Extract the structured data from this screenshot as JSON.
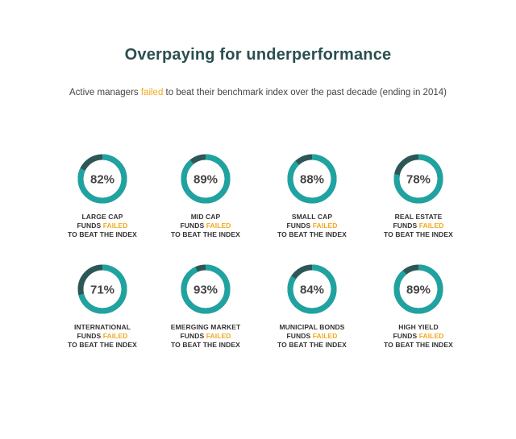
{
  "title": "Overpaying for underperformance",
  "subtitle": {
    "before": "Active managers ",
    "highlight": "failed",
    "after": " to beat their benchmark index over the past decade (ending in 2014)"
  },
  "colors": {
    "title": "#2b4f4f",
    "accent": "#f2a91f",
    "ring_main": "#1fa3a0",
    "ring_remainder": "#2d5756",
    "text": "#333333"
  },
  "label_parts": {
    "funds": "FUNDS",
    "failed": "FAILED",
    "line3": "TO BEAT THE INDEX"
  },
  "chart_data": {
    "type": "donut",
    "unit": "%",
    "items": [
      {
        "category": "LARGE CAP",
        "value": 82,
        "display": "82%"
      },
      {
        "category": "MID CAP",
        "value": 89,
        "display": "89%"
      },
      {
        "category": "SMALL CAP",
        "value": 88,
        "display": "88%"
      },
      {
        "category": "REAL ESTATE",
        "value": 78,
        "display": "78%"
      },
      {
        "category": "INTERNATIONAL",
        "value": 71,
        "display": "71%"
      },
      {
        "category": "EMERGING MARKET",
        "value": 93,
        "display": "93%"
      },
      {
        "category": "MUNICIPAL BONDS",
        "value": 84,
        "display": "84%"
      },
      {
        "category": "HIGH YIELD",
        "value": 89,
        "display": "89%"
      }
    ]
  }
}
